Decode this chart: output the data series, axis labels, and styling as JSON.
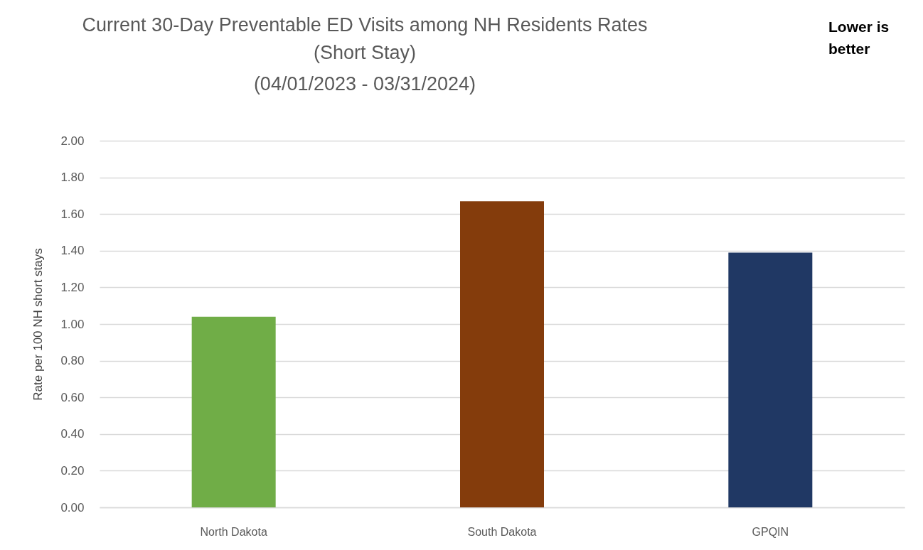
{
  "chart_data": {
    "type": "bar",
    "title": "Current 30-Day Preventable ED Visits among NH Residents Rates",
    "subtitle": "(Short Stay)\n(04/01/2023 - 03/31/2024)",
    "ylabel": "Rate per 100 NH short stays",
    "categories": [
      "North Dakota",
      "South Dakota",
      "GPQIN"
    ],
    "values": [
      1.04,
      1.67,
      1.39
    ],
    "colors": [
      "#70ad47",
      "#843c0c",
      "#203864"
    ],
    "ylim": [
      0,
      2
    ],
    "yticks": [
      {
        "value": 0,
        "label": "0.00"
      },
      {
        "value": 0.2,
        "label": "0.20"
      },
      {
        "value": 0.4,
        "label": "0.40"
      },
      {
        "value": 0.6,
        "label": "0.60"
      },
      {
        "value": 0.8,
        "label": "0.80"
      },
      {
        "value": 1,
        "label": "1.00"
      },
      {
        "value": 1.2,
        "label": "1.20"
      },
      {
        "value": 1.4,
        "label": "1.40"
      },
      {
        "value": 1.6,
        "label": "1.60"
      },
      {
        "value": 1.8,
        "label": "1.80"
      },
      {
        "value": 2,
        "label": "2.00"
      }
    ],
    "grid": "y",
    "annotations": [
      "Lower is better"
    ]
  }
}
